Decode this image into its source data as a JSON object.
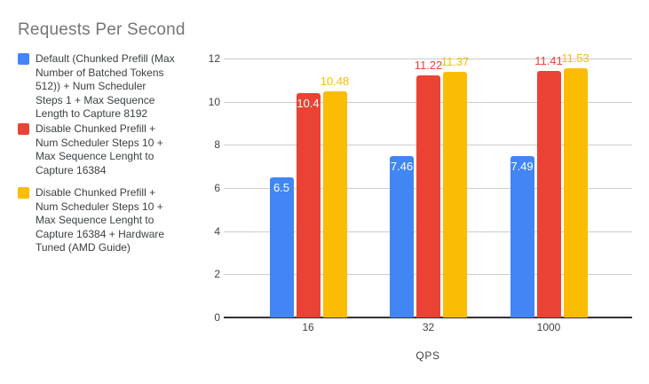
{
  "title": "Requests Per Second",
  "legend": {
    "items": [
      {
        "label": "Default (Chunked Prefill (Max\nNumber of Batched Tokens\n512)) + Num Scheduler\nSteps 1 + Max Sequence\nLength to Capture 8192",
        "color": "#4285F4"
      },
      {
        "label": "Disable Chunked Prefill +\nNum Scheduler Steps 10 +\nMax Sequence Lenght to\nCapture 16384",
        "color": "#EA4335"
      },
      {
        "label": "Disable Chunked Prefill +\nNum Scheduler Steps 10 +\nMax Sequence Lenght to\nCapture 16384 + Hardware\nTuned (AMD Guide)",
        "color": "#FBBC04"
      }
    ]
  },
  "chart_data": {
    "type": "bar",
    "title": "Requests Per Second",
    "categories": [
      "16",
      "32",
      "1000"
    ],
    "series": [
      {
        "name": "Default (Chunked Prefill (Max Number of Batched Tokens 512)) + Num Scheduler Steps 1 + Max Sequence Length to Capture 8192",
        "color": "#4285F4",
        "label_color": "#4285F4",
        "values": [
          6.5,
          7.46,
          7.49
        ],
        "label_placements": [
          "inside",
          "inside",
          "inside"
        ]
      },
      {
        "name": "Disable Chunked Prefill + Num Scheduler Steps 10 + Max Sequence Lenght to Capture 16384",
        "color": "#EA4335",
        "label_color": "#EA4335",
        "values": [
          10.4,
          11.22,
          11.41
        ],
        "label_placements": [
          "inside",
          "above",
          "above"
        ]
      },
      {
        "name": "Disable Chunked Prefill + Num Scheduler Steps 10 + Max Sequence Lenght to Capture 16384 + Hardware Tuned (AMD Guide)",
        "color": "#FBBC04",
        "label_color": "#FBBC04",
        "values": [
          10.48,
          11.37,
          11.53
        ],
        "label_placements": [
          "above",
          "above",
          "above"
        ]
      }
    ],
    "xlabel": "QPS",
    "ylabel": "",
    "ylim": [
      0,
      12
    ],
    "yticks": [
      0,
      2,
      4,
      6,
      8,
      10,
      12
    ],
    "grid": true,
    "legend_position": "left"
  }
}
